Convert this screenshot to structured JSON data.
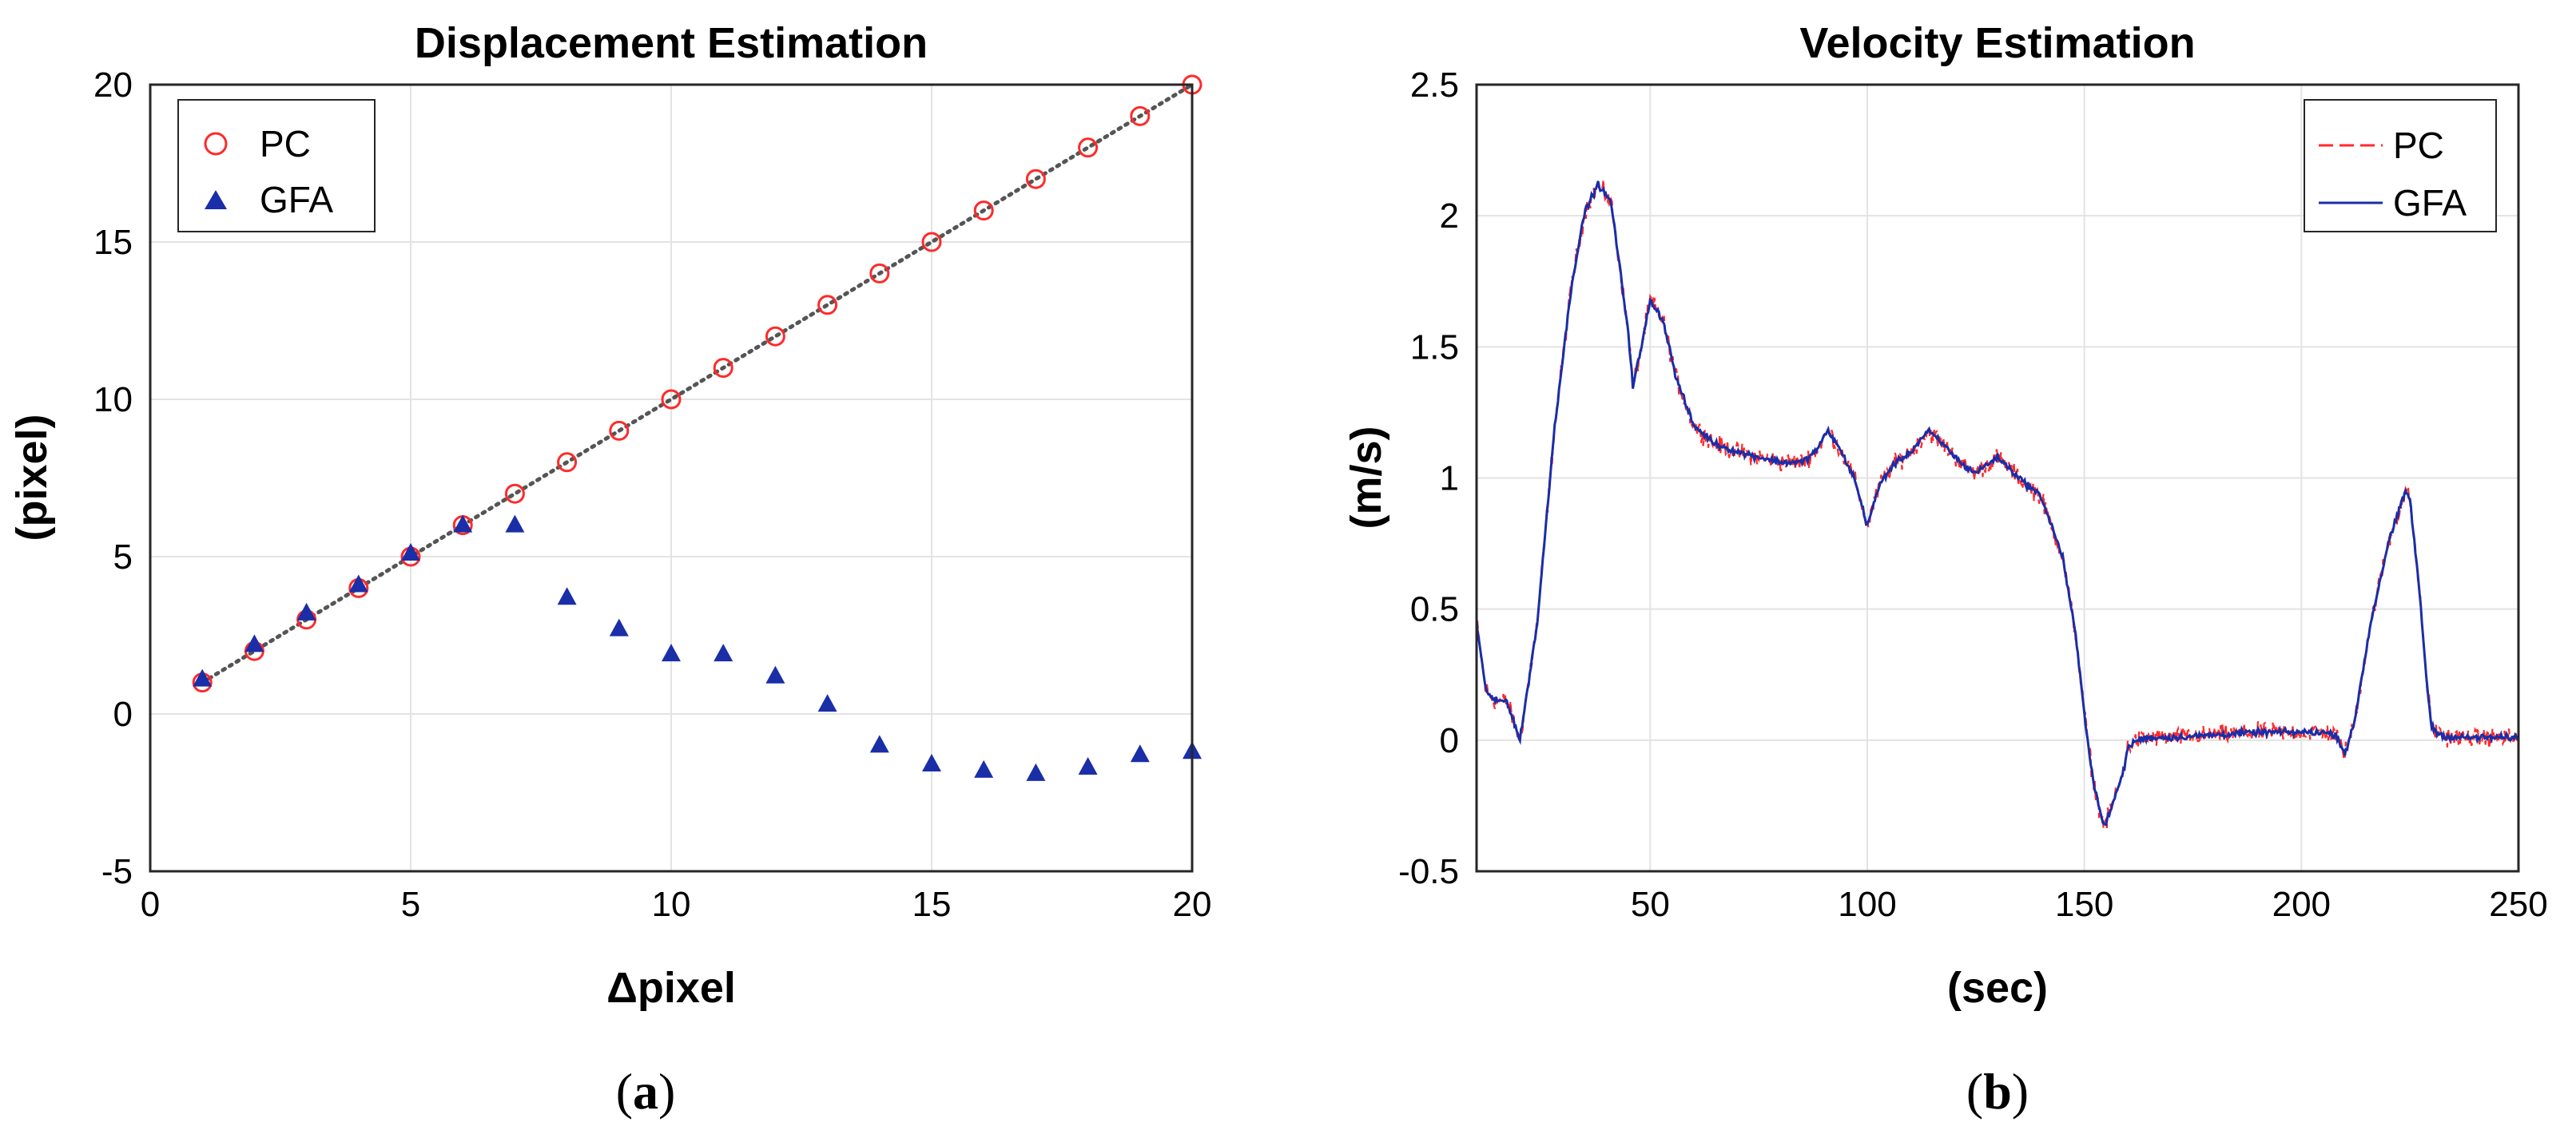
{
  "chart_data": [
    {
      "type": "scatter",
      "title": "Displacement Estimation",
      "xlabel": "Δpixel",
      "ylabel": "(pixel)",
      "xlim": [
        0,
        20
      ],
      "ylim": [
        -5,
        20
      ],
      "xticks": [
        0,
        5,
        10,
        15,
        20
      ],
      "yticks": [
        -5,
        0,
        5,
        10,
        15,
        20
      ],
      "grid": true,
      "legend_position": "top-left",
      "reference_line": {
        "style": "dotted",
        "color": "#555555",
        "x": [
          1,
          20
        ],
        "y": [
          1,
          20
        ]
      },
      "series": [
        {
          "name": "PC",
          "marker": "circle",
          "color": "#ff2a2a",
          "x": [
            1,
            2,
            3,
            4,
            5,
            6,
            7,
            8,
            9,
            10,
            11,
            12,
            13,
            14,
            15,
            16,
            17,
            18,
            19,
            20
          ],
          "y": [
            1,
            2,
            3,
            4,
            5,
            6,
            7,
            8,
            9,
            10,
            11,
            12,
            13,
            14,
            15,
            16,
            17,
            18,
            19,
            20
          ]
        },
        {
          "name": "GFA",
          "marker": "triangle",
          "color": "#1a2ea8",
          "x": [
            1,
            2,
            3,
            4,
            5,
            6,
            7,
            8,
            9,
            10,
            11,
            12,
            13,
            14,
            15,
            16,
            17,
            18,
            19,
            20
          ],
          "y": [
            1.1,
            2.2,
            3.2,
            4.1,
            5.1,
            6.0,
            6.0,
            3.7,
            2.7,
            1.9,
            1.9,
            1.2,
            0.3,
            -1.0,
            -1.6,
            -1.8,
            -1.9,
            -1.7,
            -1.3,
            -1.2
          ]
        }
      ]
    },
    {
      "type": "line",
      "title": "Velocity Estimation",
      "xlabel": "(sec)",
      "ylabel": "(m/s)",
      "xlim": [
        10,
        250
      ],
      "ylim": [
        -0.5,
        2.5
      ],
      "xticks": [
        50,
        100,
        150,
        200,
        250
      ],
      "yticks": [
        -0.5,
        0,
        0.5,
        1,
        1.5,
        2,
        2.5
      ],
      "ytick_labels": [
        "-0.5",
        "0",
        "0.5",
        "1",
        "1.5",
        "2",
        "2.5"
      ],
      "grid": true,
      "legend_position": "top-right",
      "series": [
        {
          "name": "PC",
          "style": "dashed",
          "color": "#ff2a2a",
          "noise": 0.05
        },
        {
          "name": "GFA",
          "style": "solid",
          "color": "#1a2ea8",
          "noise": 0.018
        }
      ],
      "profile": {
        "t": [
          10,
          12,
          14,
          17,
          20,
          24,
          28,
          32,
          35,
          38,
          41,
          43,
          45,
          46,
          48,
          50,
          53,
          56,
          60,
          65,
          70,
          75,
          80,
          85,
          88,
          91,
          94,
          97,
          100,
          103,
          106,
          110,
          114,
          118,
          122,
          125,
          130,
          135,
          140,
          145,
          148,
          150,
          152,
          154,
          155,
          157,
          159,
          160,
          162,
          165,
          170,
          180,
          190,
          200,
          205,
          208,
          210,
          212,
          214,
          216,
          218,
          220,
          222,
          224,
          225,
          227,
          229,
          230,
          232,
          235,
          240,
          245,
          250
        ],
        "v": [
          0.45,
          0.2,
          0.15,
          0.15,
          0.0,
          0.45,
          1.2,
          1.75,
          2.02,
          2.12,
          2.05,
          1.8,
          1.55,
          1.35,
          1.5,
          1.68,
          1.6,
          1.38,
          1.2,
          1.13,
          1.1,
          1.08,
          1.06,
          1.06,
          1.1,
          1.18,
          1.1,
          1.0,
          0.82,
          0.98,
          1.05,
          1.1,
          1.18,
          1.12,
          1.05,
          1.02,
          1.08,
          1.0,
          0.93,
          0.7,
          0.4,
          0.1,
          -0.15,
          -0.3,
          -0.32,
          -0.22,
          -0.12,
          -0.03,
          0.0,
          0.01,
          0.01,
          0.02,
          0.03,
          0.03,
          0.03,
          0.02,
          -0.05,
          0.05,
          0.25,
          0.45,
          0.6,
          0.75,
          0.85,
          0.95,
          0.92,
          0.6,
          0.2,
          0.05,
          0.02,
          0.01,
          0.01,
          0.01,
          0.01
        ]
      }
    }
  ],
  "panel_labels": {
    "a": "a",
    "b": "b",
    "open": "(",
    "close": ")"
  }
}
